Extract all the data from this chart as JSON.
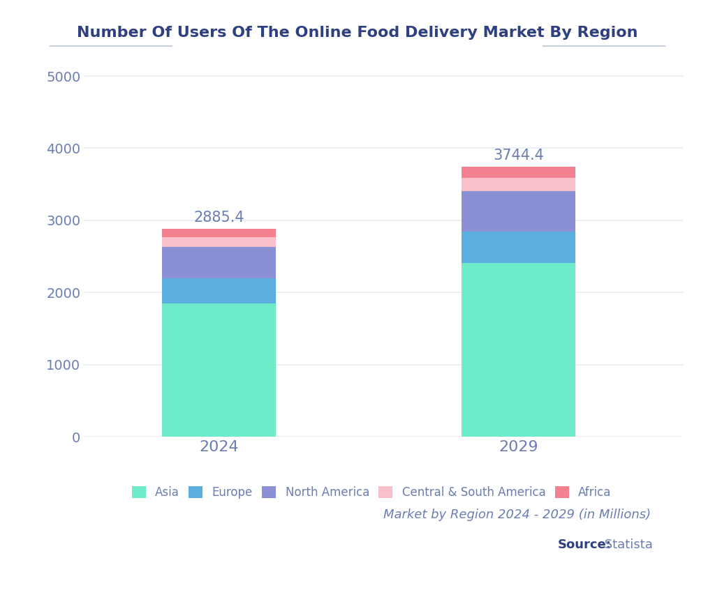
{
  "title": "Number Of Users Of The Online Food Delivery Market By Region",
  "years": [
    "2024",
    "2029"
  ],
  "totals": [
    2885.4,
    3744.4
  ],
  "segments": [
    {
      "name": "Asia",
      "values": [
        1847.0,
        2408.0
      ],
      "color": "#6EEBC9"
    },
    {
      "name": "Europe",
      "values": [
        348.0,
        435.0
      ],
      "color": "#5BAEE0"
    },
    {
      "name": "North America",
      "values": [
        440.0,
        563.0
      ],
      "color": "#8B8FD4"
    },
    {
      "name": "Central & South America",
      "values": [
        130.0,
        185.0
      ],
      "color": "#F9C0CB"
    },
    {
      "name": "Africa",
      "values": [
        120.4,
        153.4
      ],
      "color": "#F4818F"
    }
  ],
  "background_color": "#FFFFFF",
  "grid_color": "#E8ECF4",
  "text_color": "#6B7DB3",
  "title_color": "#2E4080",
  "ylim": [
    0,
    5200
  ],
  "yticks": [
    0,
    1000,
    2000,
    3000,
    4000,
    5000
  ],
  "subtitle": "Market by Region 2024 - 2029 (in Millions)",
  "source_bold": "Source:",
  "source_normal": " Statista",
  "bar_width": 0.38,
  "title_line_color": "#C8D0E0"
}
